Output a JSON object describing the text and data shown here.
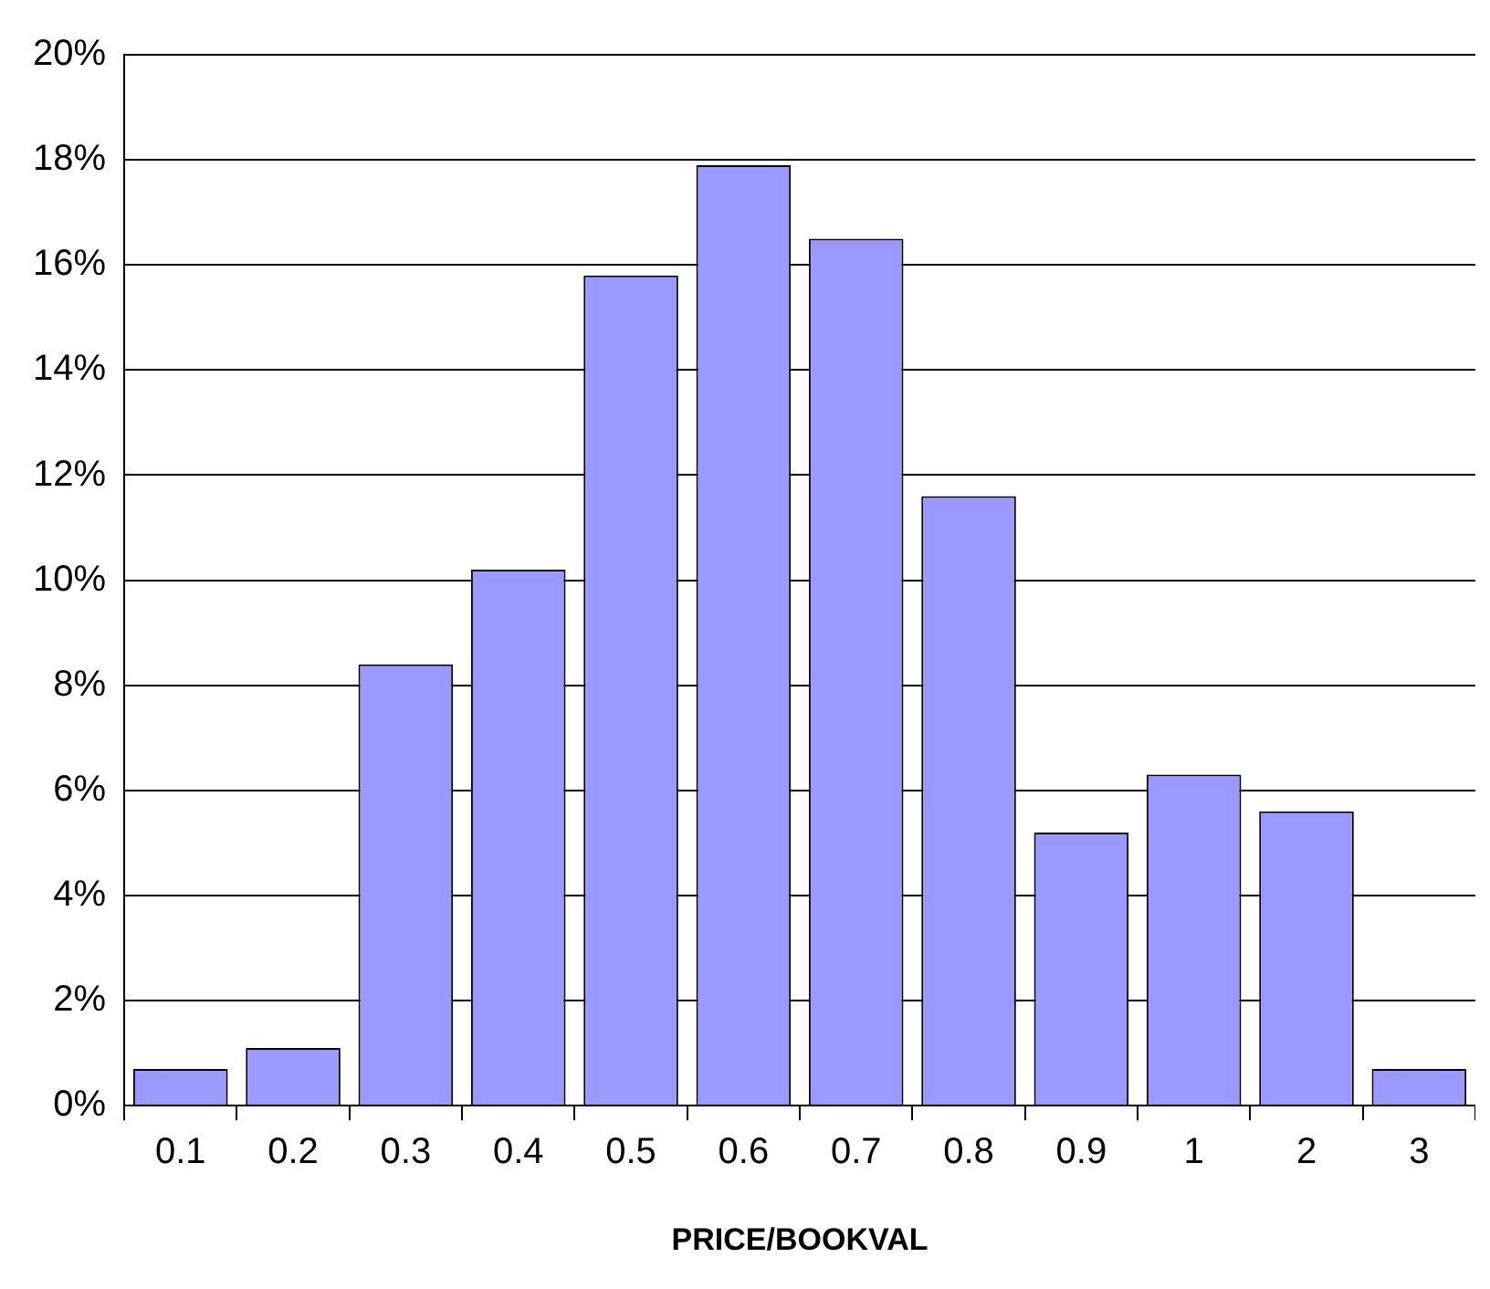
{
  "chart_data": {
    "type": "bar",
    "xlabel": "PRICE/BOOKVAL",
    "categories": [
      "0.1",
      "0.2",
      "0.3",
      "0.4",
      "0.5",
      "0.6",
      "0.7",
      "0.8",
      "0.9",
      "1",
      "2",
      "3"
    ],
    "values": [
      0.7,
      1.1,
      8.4,
      10.2,
      15.8,
      17.9,
      16.5,
      11.6,
      5.2,
      6.3,
      5.6,
      0.7
    ],
    "color": "#9999ff",
    "ylim": [
      0,
      20
    ],
    "yticks": [
      {
        "value": 0,
        "label": "0%"
      },
      {
        "value": 2,
        "label": "2%"
      },
      {
        "value": 4,
        "label": "4%"
      },
      {
        "value": 6,
        "label": "6%"
      },
      {
        "value": 8,
        "label": "8%"
      },
      {
        "value": 10,
        "label": "10%"
      },
      {
        "value": 12,
        "label": "12%"
      },
      {
        "value": 14,
        "label": "14%"
      },
      {
        "value": 16,
        "label": "16%"
      },
      {
        "value": 18,
        "label": "18%"
      },
      {
        "value": 20,
        "label": "20%"
      }
    ],
    "grid": "y",
    "legend": false
  }
}
